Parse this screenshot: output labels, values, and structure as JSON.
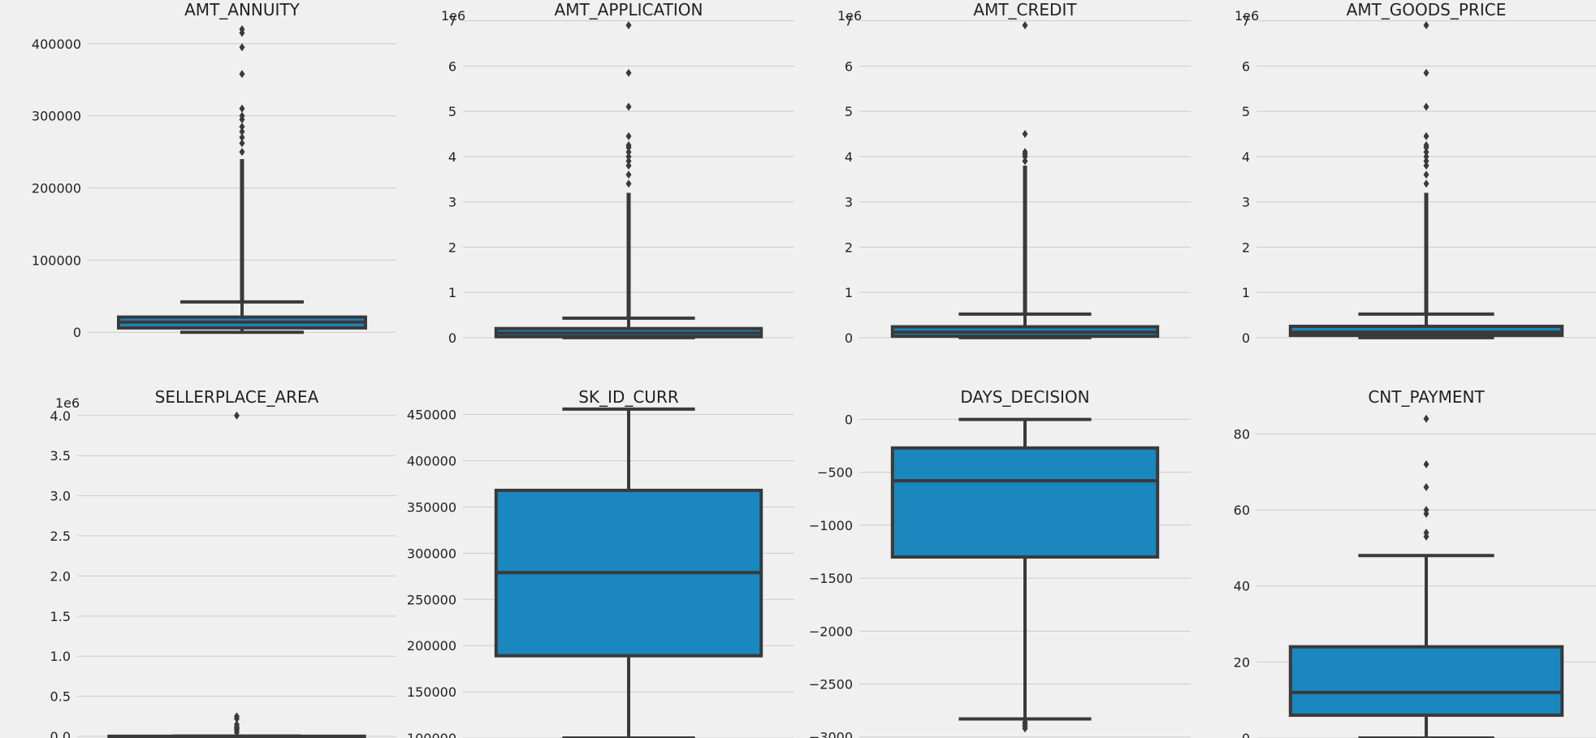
{
  "figure": {
    "background": "#f0f0f0",
    "box_color": "#1a87bf",
    "line_color": "#3a3a3a",
    "grid_color": "#cbcbcb"
  },
  "chart_data": [
    {
      "type": "box",
      "title": "AMT_ANNUITY",
      "offset_label": "",
      "ylim": [
        -20000,
        438000
      ],
      "yticks": [
        0,
        100000,
        200000,
        300000,
        400000
      ],
      "ytick_labels": [
        "0",
        "100000",
        "200000",
        "300000",
        "400000"
      ],
      "box": {
        "whisker_low": 0,
        "q1": 6000,
        "median": 14000,
        "q3": 21000,
        "whisker_high": 42000
      },
      "outliers_range": [
        43000,
        240000
      ],
      "outliers": [
        250000,
        262000,
        270000,
        278000,
        285000,
        295000,
        300000,
        310000,
        358000,
        395000,
        415000,
        420000
      ]
    },
    {
      "type": "box",
      "title": "AMT_APPLICATION",
      "offset_label": "1e6",
      "ylim": [
        -0.2,
        7.1
      ],
      "yticks": [
        0,
        1,
        2,
        3,
        4,
        5,
        6,
        7
      ],
      "ytick_labels": [
        "0",
        "1",
        "2",
        "3",
        "4",
        "5",
        "6",
        "7"
      ],
      "box": {
        "whisker_low": 0,
        "q1": 0.02,
        "median": 0.1,
        "q3": 0.2,
        "whisker_high": 0.43
      },
      "outliers_range": [
        0.44,
        3.2
      ],
      "outliers": [
        3.4,
        3.6,
        3.8,
        3.9,
        4.0,
        4.1,
        4.2,
        4.25,
        4.45,
        5.1,
        5.85,
        6.9
      ]
    },
    {
      "type": "box",
      "title": "AMT_CREDIT",
      "offset_label": "1e6",
      "ylim": [
        -0.2,
        7.1
      ],
      "yticks": [
        0,
        1,
        2,
        3,
        4,
        5,
        6,
        7
      ],
      "ytick_labels": [
        "0",
        "1",
        "2",
        "3",
        "4",
        "5",
        "6",
        "7"
      ],
      "box": {
        "whisker_low": 0,
        "q1": 0.03,
        "median": 0.12,
        "q3": 0.24,
        "whisker_high": 0.52
      },
      "outliers_range": [
        0.53,
        3.8
      ],
      "outliers": [
        3.9,
        4.0,
        4.05,
        4.1,
        4.5,
        6.9
      ]
    },
    {
      "type": "box",
      "title": "AMT_GOODS_PRICE",
      "offset_label": "1e6",
      "ylim": [
        -0.2,
        7.1
      ],
      "yticks": [
        0,
        1,
        2,
        3,
        4,
        5,
        6,
        7
      ],
      "ytick_labels": [
        "0",
        "1",
        "2",
        "3",
        "4",
        "5",
        "6",
        "7"
      ],
      "box": {
        "whisker_low": 0,
        "q1": 0.05,
        "median": 0.12,
        "q3": 0.25,
        "whisker_high": 0.52
      },
      "outliers_range": [
        0.53,
        3.2
      ],
      "outliers": [
        3.4,
        3.6,
        3.8,
        3.9,
        4.0,
        4.1,
        4.2,
        4.25,
        4.45,
        5.1,
        5.85,
        6.9
      ]
    },
    {
      "type": "box",
      "title": "SELLERPLACE_AREA",
      "offset_label": "1e6",
      "ylim": [
        -0.02,
        4.15
      ],
      "yticks": [
        0,
        0.5,
        1.0,
        1.5,
        2.0,
        2.5,
        3.0,
        3.5,
        4.0
      ],
      "ytick_labels": [
        "0.0",
        "0.5",
        "1.0",
        "1.5",
        "2.0",
        "2.5",
        "3.0",
        "3.5",
        "4.0"
      ],
      "box": {
        "whisker_low": 0,
        "q1": 0,
        "median": 0,
        "q3": 0.002,
        "whisker_high": 0.004
      },
      "outliers_range": [],
      "outliers": [
        0.0,
        0.05,
        0.08,
        0.1,
        0.12,
        0.15,
        0.22,
        0.25,
        4.0
      ]
    },
    {
      "type": "box",
      "title": "SK_ID_CURR",
      "offset_label": "",
      "ylim": [
        100000,
        462000
      ],
      "yticks": [
        100000,
        150000,
        200000,
        250000,
        300000,
        350000,
        400000,
        450000
      ],
      "ytick_labels": [
        "100000",
        "150000",
        "200000",
        "250000",
        "300000",
        "350000",
        "400000",
        "450000"
      ],
      "box": {
        "whisker_low": 100000,
        "q1": 189000,
        "median": 279000,
        "q3": 368000,
        "whisker_high": 456000
      },
      "outliers_range": [],
      "outliers": []
    },
    {
      "type": "box",
      "title": "DAYS_DECISION",
      "offset_label": "",
      "ylim": [
        -3010,
        150
      ],
      "yticks": [
        0,
        -500,
        -1000,
        -1500,
        -2000,
        -2500,
        -3000
      ],
      "ytick_labels": [
        "0",
        "−500",
        "−1000",
        "−1500",
        "−2000",
        "−2500",
        "−3000"
      ],
      "box": {
        "whisker_low": -2830,
        "q1": -1300,
        "median": -580,
        "q3": -270,
        "whisker_high": -1
      },
      "outliers_range": [],
      "outliers": [
        -2860,
        -2880,
        -2900,
        -2920
      ]
    },
    {
      "type": "box",
      "title": "CNT_PAYMENT",
      "offset_label": "",
      "ylim": [
        0,
        88
      ],
      "yticks": [
        0,
        20,
        40,
        60,
        80
      ],
      "ytick_labels": [
        "0",
        "20",
        "40",
        "60",
        "80"
      ],
      "box": {
        "whisker_low": 0,
        "q1": 6,
        "median": 12,
        "q3": 24,
        "whisker_high": 48
      },
      "outliers_range": [],
      "outliers": [
        53,
        54,
        59,
        60,
        66,
        72,
        84
      ]
    }
  ]
}
